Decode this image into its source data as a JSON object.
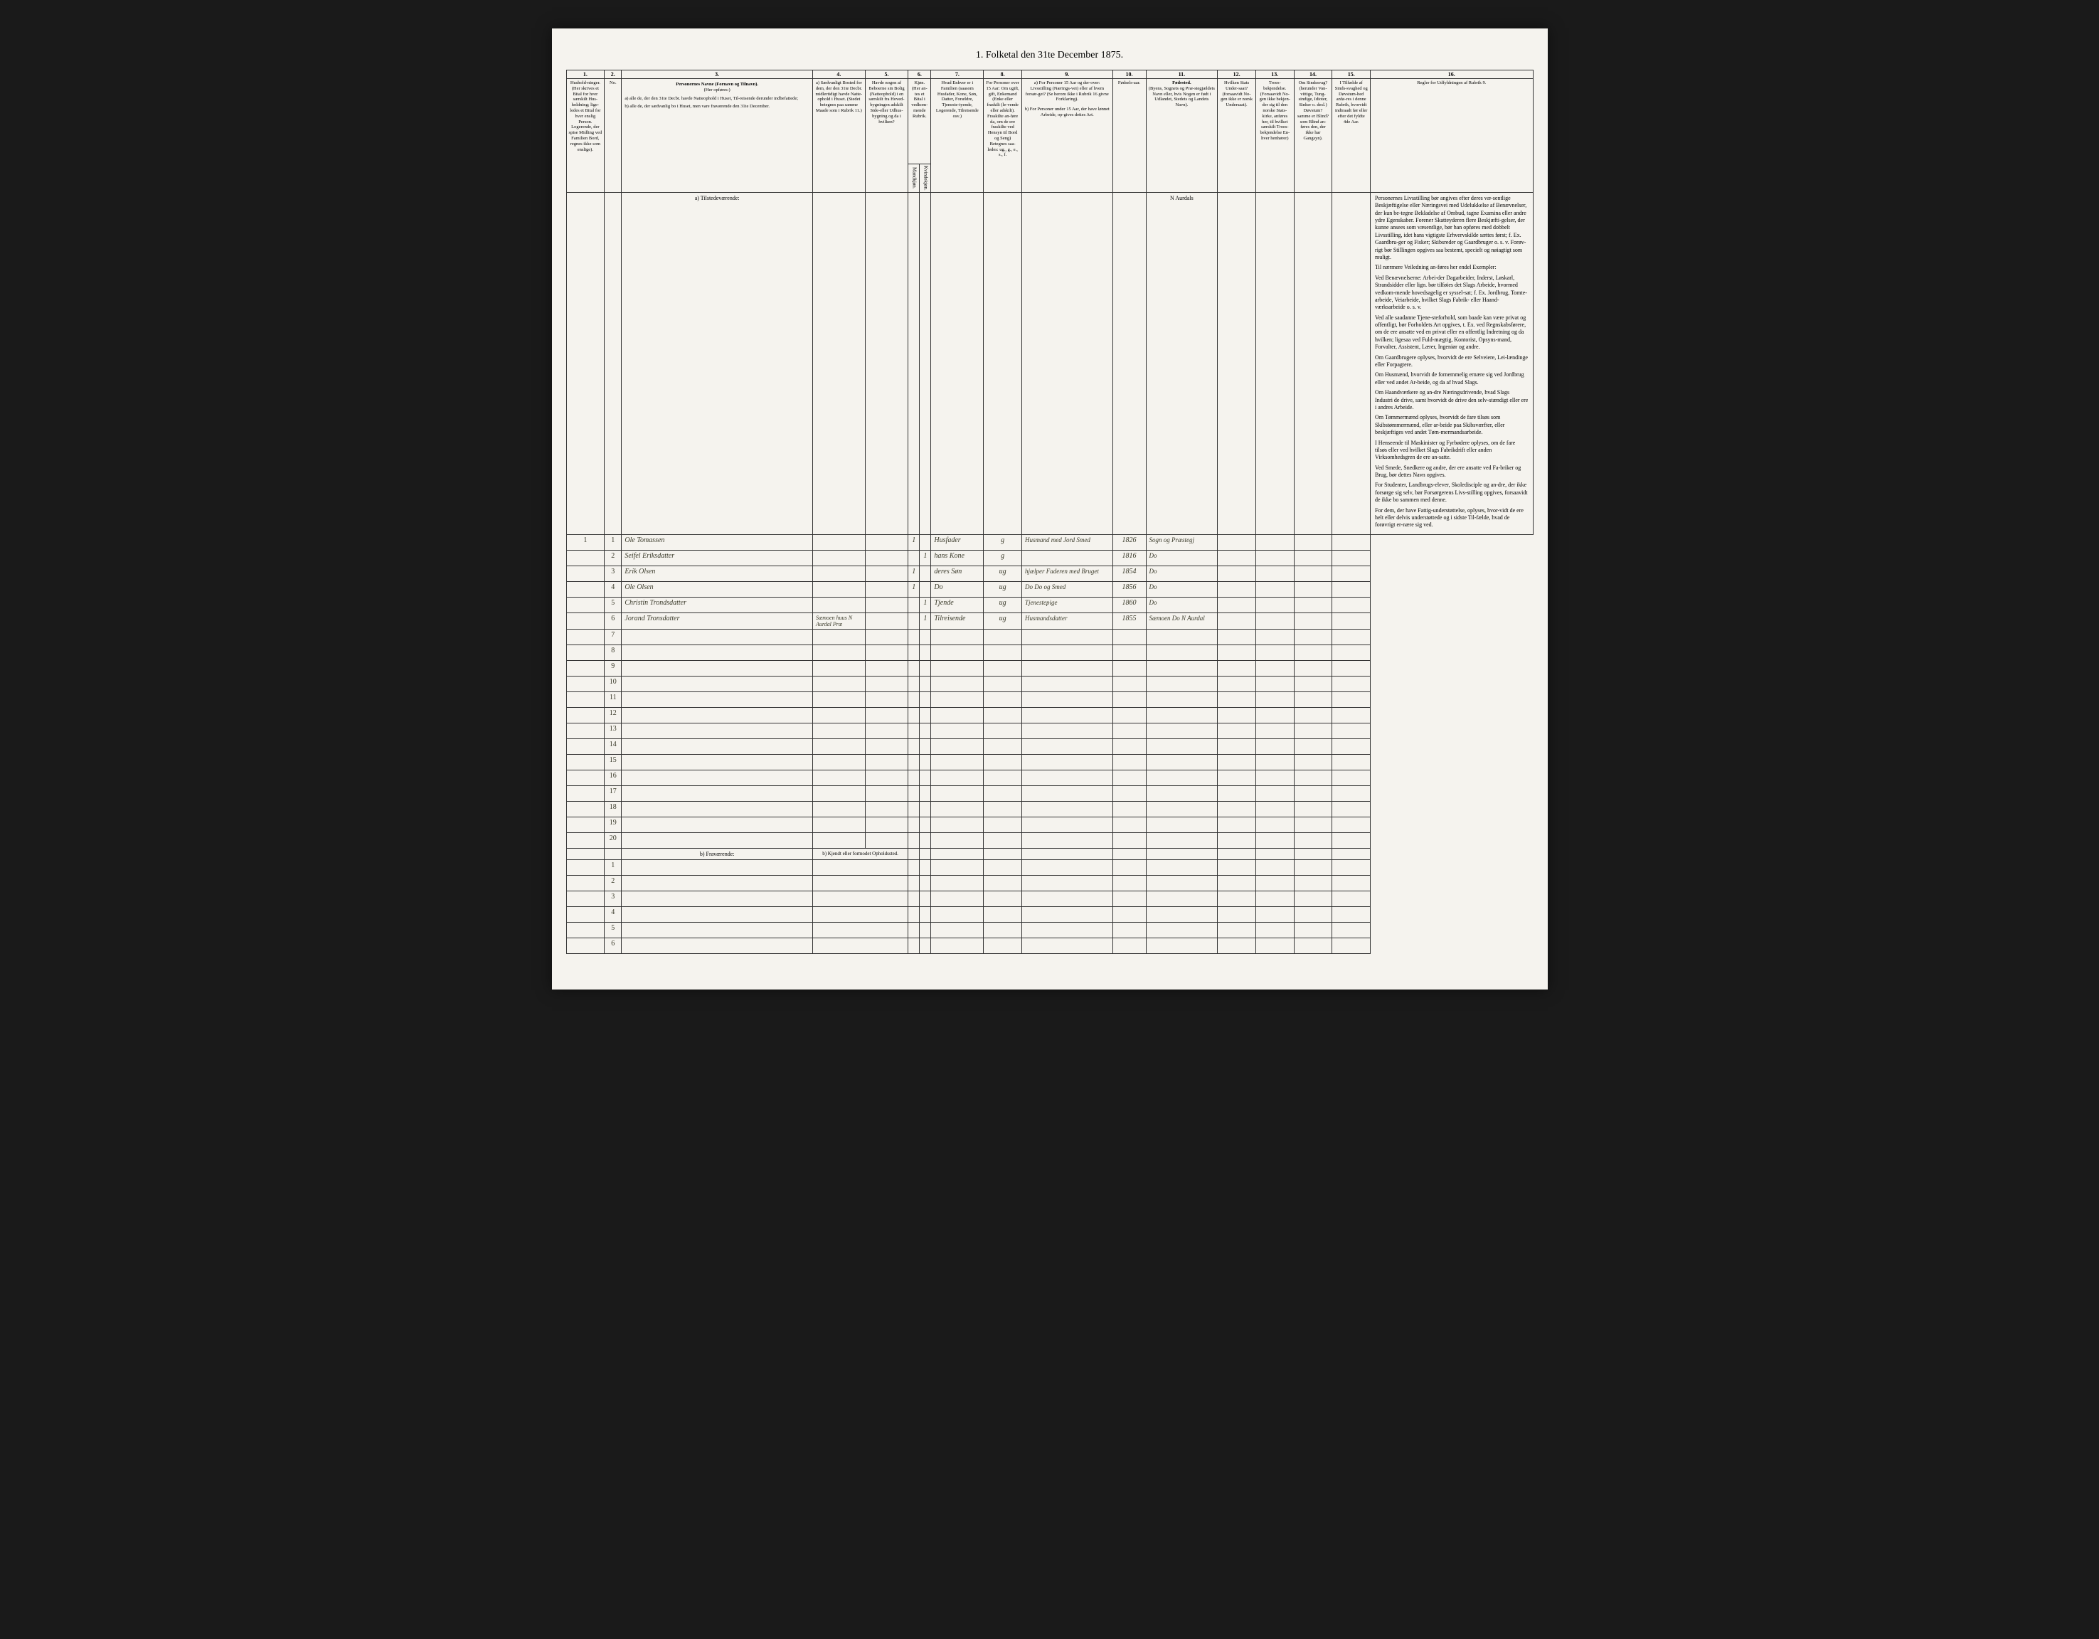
{
  "title": "1. Folketal den 31te December 1875.",
  "columns": {
    "nums": [
      "1.",
      "2.",
      "3.",
      "4.",
      "5.",
      "6.",
      "7.",
      "8.",
      "9.",
      "10.",
      "11.",
      "12.",
      "13.",
      "14.",
      "15.",
      "16."
    ],
    "h1": "Hushold-ninger. (Her skrives et Bital for hver særskilt Hus-holdning; lige-ledes et Bital for hver enslig Person. Logerende, der spise Midling ved Familien Bord, regnes ikke som enslige).",
    "h2": "No.",
    "h3_title": "Personernes Navne (Fornavn og Tilnavn).",
    "h3_sub": "(Her opføres:)",
    "h3_a": "a) alle de, der den 31te Decbr. havde Natteophold i Huset, Til-reisende derunder indbefattede;",
    "h3_b": "b) alle de, der sædvanlig bo i Huset, men vare fraværende den 31te December.",
    "h4": "a) Sædvanligt Bosted for dem, der den 31te Decbr. midlertidigt havde Natte-ophold i Huset. (Stedet betegnes paa samme Maade som i Rubrik 11.)",
    "h5": "Havde nogen af Beboerne sin Bolig (Natteophold) i en særskilt fra Hoved-bygningen adskilt Side-eller Udhus-bygning og da i hvilken?",
    "h6": "Kjøn. (Her an-tes et Bital i vedkom-mende Rubrik.",
    "h6a": "Mandkjøn.",
    "h6b": "Kvindekjøn.",
    "h7": "Hvad Enhver er i Familien (saasom Husfader, Kone, Søn, Datter, Forældre, Tjeneste-tyende, Logerende, Tilreisende osv.)",
    "h8": "For Personer over 15 Aar: Om ugift, gift, Enkemand (Enke eller fraskilt (le-vende eller adskilt). Fraskilte an-føre da, om de ere fraskilte ved Hensyn til Bord og Seng) Betegnes saa-ledes: ug., g., e., s., f.",
    "h9_title": "a) For Personer 15 Aar og der-over: Livsstilling (Nærings-vei) eller af hvem forsør-get? (Se herom ikke i Rubrik 16 givne Forklaring).",
    "h9_sub": "b) For Personer under 15 Aar, der have lønnet Arbeide, op-gives dettes Art.",
    "h10": "Fødsels-aar.",
    "h11_title": "Fødested.",
    "h11_sub": "(Byens, Sognets og Præ-stegjældets Navn eller, hvis Nogen er født i Udlandet, Stedets og Landets Navn).",
    "h12": "Hvilken Stats Under-saat? (forsaavidt No-gen ikke er norsk Undersaat).",
    "h13": "Troes-bekjendelse. (Forsaavidt No-gen ikke bekjen-der sig til den norske Stats-kirke, anføres her, til hvilket særskilt Troes-bekjendelse En-hver henhører)",
    "h14": "Om Sindssvag? (herunder Van-vittige, Tung-sindige, Idioter, Sinker o. desl.) Døvstum? samme er Blind? som Blind an-føres den, der ikke har Gangsyn).",
    "h15": "I Tilfælde af Sinds-svaghed og Døvstum-hed anfø-res i denne Rubrik, hvorvidt indtraadt før eller efter det fyldte 4de Aar.",
    "h16_title": "Regler for Udfyldningen af Rubrik 9."
  },
  "section_a": "a) Tilstedeværende:",
  "section_b": "b) Fraværende:",
  "section_b_note": "b) Kjendt eller formodet Opholdssted.",
  "birthplace_header": "N Aurdals",
  "rows": [
    {
      "hh": "1",
      "num": "1",
      "name": "Ole Tomassen",
      "col6a": "1",
      "col7": "Husfader",
      "col8": "g",
      "col9": "Husmand med Jord Smed",
      "col10": "1826",
      "col11": "Sogn og Præstegj"
    },
    {
      "hh": "",
      "num": "2",
      "name": "Seifel Eriksdatter",
      "col6b": "1",
      "col7": "hans Kone",
      "col8": "g",
      "col9": "",
      "col10": "1816",
      "col11": "Do"
    },
    {
      "hh": "",
      "num": "3",
      "name": "Erik Olsen",
      "col6a": "1",
      "col7": "deres Søn",
      "col8": "ug",
      "col9": "hjælper Faderen med Bruget",
      "col10": "1854",
      "col11": "Do"
    },
    {
      "hh": "",
      "num": "4",
      "name": "Ole Olsen",
      "col6a": "1",
      "col7": "Do",
      "col8": "ug",
      "col9": "Do Do og Smed",
      "col10": "1856",
      "col11": "Do"
    },
    {
      "hh": "",
      "num": "5",
      "name": "Christin Trondsdatter",
      "col6b": "1",
      "col7": "Tjende",
      "col8": "ug",
      "col9": "Tjenestepige",
      "col10": "1860",
      "col11": "Do"
    },
    {
      "hh": "",
      "num": "6",
      "name": "Jorand Tronsdatter",
      "col4": "Sæmoen huus N Aurdal Præ",
      "col6b": "1",
      "col7": "Tilreisende",
      "col8": "ug",
      "col9": "Husmandsdatter",
      "col10": "1855",
      "col11": "Sæmoen Do N Aurdal"
    }
  ],
  "empty_rows_a": [
    "7",
    "8",
    "9",
    "10",
    "11",
    "12",
    "13",
    "14",
    "15",
    "16",
    "17",
    "18",
    "19",
    "20"
  ],
  "empty_rows_b": [
    "1",
    "2",
    "3",
    "4",
    "5",
    "6"
  ],
  "instructions_text": [
    "Personernes Livsstilling bør angives efter deres væ-sentlige Beskjæftigelse eller Næringsvei med Udelukkelse af Benævnelser, der kun be-tegne Bekladelse af Ombud, tagne Examina eller andre ydre Egenskaber. Forener Skatteyderen flere Beskjæfti-gelser, der kunne ansees som væsentlige, bør han opføres med dobbelt Livsstilling, idet hans vigtigste Erhvervskilde sættes først; f. Ex. Gaardbru-ger og Fisker; Skibsreder og Gaardbruger o. s. v. Forøv-rigt bør Stillingen opgives saa bestemt, specielt og nøiagtigt som muligt.",
    "Til nærmere Veiledning an-føres her endel Exempler:",
    "Ved Benævnelserne: Arbei-der Dagarbeider, Inderst, Løskarl, Strandsidder eller lign. bør tilføies det Slags Arbeide, hvormed vedkom-mende hovedsagelig er syssel-sat; f. Ex. Jordbrug, Tomte-arbeide, Veiarbeide, hvilket Slags Fabrik- eller Haand-værksarbeide o. s. v.",
    "Ved alle saadanne Tjene-steforhold, som baade kan være privat og offentligt, bør Forholdets Art opgives, t. Ex. ved Regnskabsførere, om de ere ansatte ved en privat eller en offentlig Indretning og da hvilken; ligesaa ved Fuld-mægtig, Kontorist, Opsyns-mand, Forvalter, Assistent, Lærer, Ingeniør og andre.",
    "Om Gaardbrugere oplyses, hvorvidt de ere Selveiere, Lei-lændinge eller Forpagtere.",
    "Om Husmænd, hvorvidt de fornemmelig ernære sig ved Jordbrug eller ved andet Ar-beide, og da af hvad Slags.",
    "Om Haandværkere og an-dre Næringsdrivende, hvad Slags Industri de drive, samt hvorvidt de drive den selv-stændigt eller ere i andres Arbeide.",
    "Om Tømmermænd oplyses, hvorvidt de fare tilsøs som Skibstømmermænd, eller ar-beide paa Skibsværfter, eller beskjæftiges ved andet Tøm-mermandsarbeide.",
    "I Henseende til Maskinister og Fyrbødere oplyses, om de fare tilsøs eller ved hvilket Slags Fabrikdrift eller anden Virksomhedsgren de ere an-satte.",
    "Ved Smede, Snedkere og andre, der ere ansatte ved Fa-briker og Brug, bør dettes Navn opgives.",
    "For Studenter, Landbrugs-elever, Skoledisciple og an-dre, der ikke forsørge sig selv, bør Forsørgerens Livs-stilling opgives, forsaavidt de ikke bo sammen med denne.",
    "For dem, der have Fattig-understøttelse, oplyses, hvor-vidt de ere helt eller delvis understøttede og i sidste Til-fælde, hvad de forøvrigt er-nære sig ved."
  ]
}
